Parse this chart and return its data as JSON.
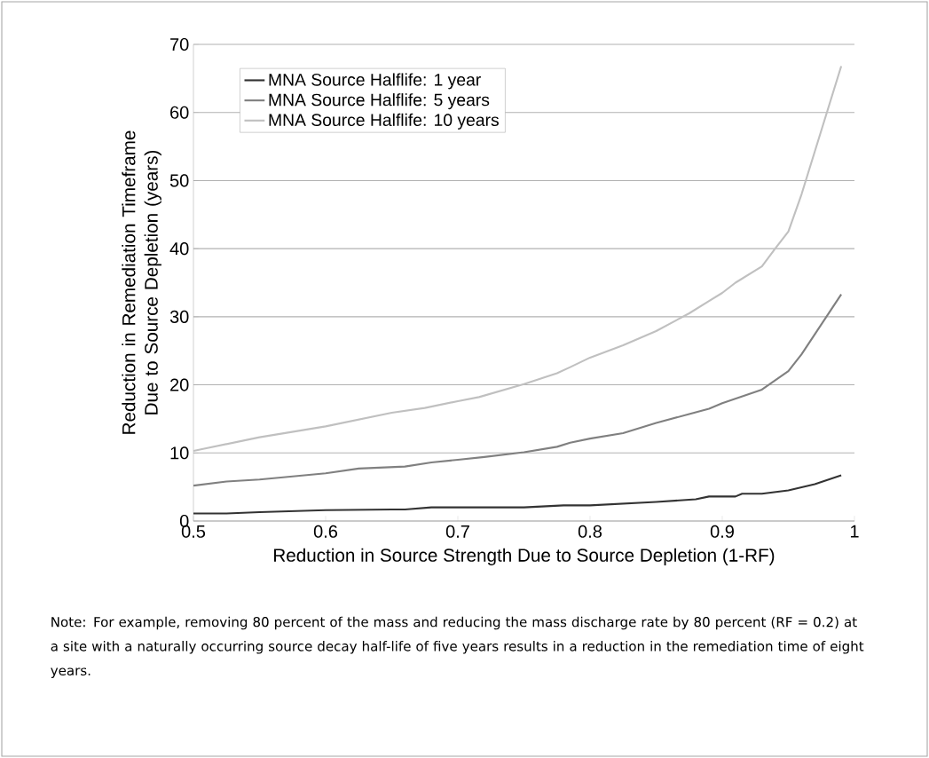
{
  "chart_data": {
    "type": "line",
    "xlabel": "Reduction in Source Strength Due to Source Depletion (1-RF)",
    "ylabel": "Reduction in Remediation Timeframe Due to Source Depletion (years)",
    "xlim": [
      0.5,
      1
    ],
    "xticks": [
      0.5,
      0.6,
      0.7,
      0.8,
      0.9,
      1
    ],
    "ylim": [
      0,
      70
    ],
    "yticks": [
      0,
      10,
      20,
      30,
      40,
      50,
      60,
      70
    ],
    "grid": "y",
    "legend": "top left",
    "marker": "none",
    "line_style": "solid",
    "series": [
      {
        "name": "MNA Source Halflife:  1 year",
        "color": "#333333",
        "x": [
          0.5,
          0.525,
          0.55,
          0.6,
          0.65,
          0.66,
          0.68,
          0.75,
          0.78,
          0.8,
          0.85,
          0.88,
          0.89,
          0.91,
          0.915,
          0.93,
          0.95,
          0.97,
          0.99
        ],
        "values": [
          1.1,
          1.1,
          1.3,
          1.6,
          1.7,
          1.7,
          2.0,
          2.0,
          2.3,
          2.3,
          2.8,
          3.2,
          3.6,
          3.6,
          4.0,
          4.0,
          4.5,
          5.4,
          6.7
        ]
      },
      {
        "name": "MNA Source Halflife:  5 years",
        "color": "#808080",
        "x": [
          0.5,
          0.525,
          0.55,
          0.6,
          0.625,
          0.66,
          0.68,
          0.7,
          0.72,
          0.75,
          0.775,
          0.785,
          0.8,
          0.825,
          0.85,
          0.875,
          0.89,
          0.9,
          0.93,
          0.95,
          0.96,
          0.99
        ],
        "values": [
          5.2,
          5.8,
          6.1,
          7.0,
          7.7,
          8.0,
          8.6,
          9.0,
          9.4,
          10.1,
          10.9,
          11.5,
          12.1,
          12.9,
          14.4,
          15.7,
          16.5,
          17.3,
          19.3,
          22.0,
          24.5,
          33.3
        ]
      },
      {
        "name": "MNA Source Halflife:  10 years",
        "color": "#c0c0c0",
        "x": [
          0.5,
          0.55,
          0.6,
          0.65,
          0.675,
          0.7,
          0.716,
          0.75,
          0.775,
          0.785,
          0.8,
          0.825,
          0.85,
          0.875,
          0.89,
          0.9,
          0.91,
          0.93,
          0.94,
          0.95,
          0.96,
          0.99
        ],
        "values": [
          10.3,
          12.3,
          13.9,
          15.9,
          16.6,
          17.6,
          18.2,
          20.1,
          21.7,
          22.6,
          24.0,
          25.8,
          27.9,
          30.5,
          32.3,
          33.5,
          35.0,
          37.4,
          40.0,
          42.5,
          48.0,
          66.8
        ]
      }
    ],
    "annotations": [
      "Note: For example, removing 80 percent of the mass and reducing the mass discharge rate by 80 percent (RF = 0.2) at a site with a naturally occurring source decay half-life of five years results in a reduction in the remediation time of eight years."
    ]
  }
}
